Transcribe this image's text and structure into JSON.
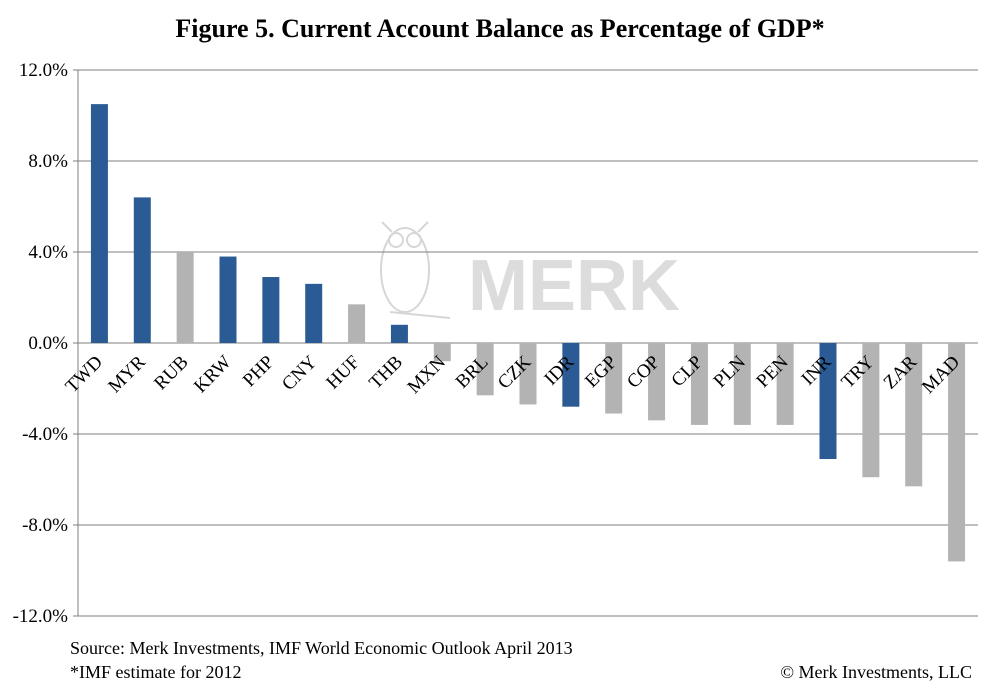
{
  "title": "Figure 5. Current Account Balance as Percentage of GDP*",
  "watermark_text": "MERK",
  "source_note": "Source: Merk Investments, IMF World Economic Outlook April 2013",
  "estimate_note": "*IMF estimate for 2012",
  "copyright": "© Merk Investments, LLC",
  "colors": {
    "highlight": "#2a5b94",
    "other": "#b3b3b3",
    "grid": "#7f7f7f"
  },
  "chart_data": {
    "type": "bar",
    "title": "Figure 5. Current Account Balance as Percentage of GDP*",
    "xlabel": "",
    "ylabel": "",
    "ylim": [
      -12,
      12
    ],
    "yticks": [
      12,
      8,
      4,
      0,
      -4,
      -8,
      -12
    ],
    "ytick_labels": [
      "12.0%",
      "8.0%",
      "4.0%",
      "0.0%",
      "-4.0%",
      "-8.0%",
      "-12.0%"
    ],
    "grid": true,
    "legend": "none",
    "categories": [
      "TWD",
      "MYR",
      "RUB",
      "KRW",
      "PHP",
      "CNY",
      "HUF",
      "THB",
      "MXN",
      "BRL",
      "CZK",
      "IDR",
      "EGP",
      "COP",
      "CLP",
      "PLN",
      "PEN",
      "INR",
      "TRY",
      "ZAR",
      "MAD"
    ],
    "values": [
      10.5,
      6.4,
      4.0,
      3.8,
      2.9,
      2.6,
      1.7,
      0.8,
      -0.8,
      -2.3,
      -2.7,
      -2.8,
      -3.1,
      -3.4,
      -3.6,
      -3.6,
      -3.6,
      -5.1,
      -5.9,
      -6.3,
      -9.6
    ],
    "highlighted": [
      "TWD",
      "MYR",
      "KRW",
      "PHP",
      "CNY",
      "THB",
      "IDR",
      "INR"
    ]
  }
}
